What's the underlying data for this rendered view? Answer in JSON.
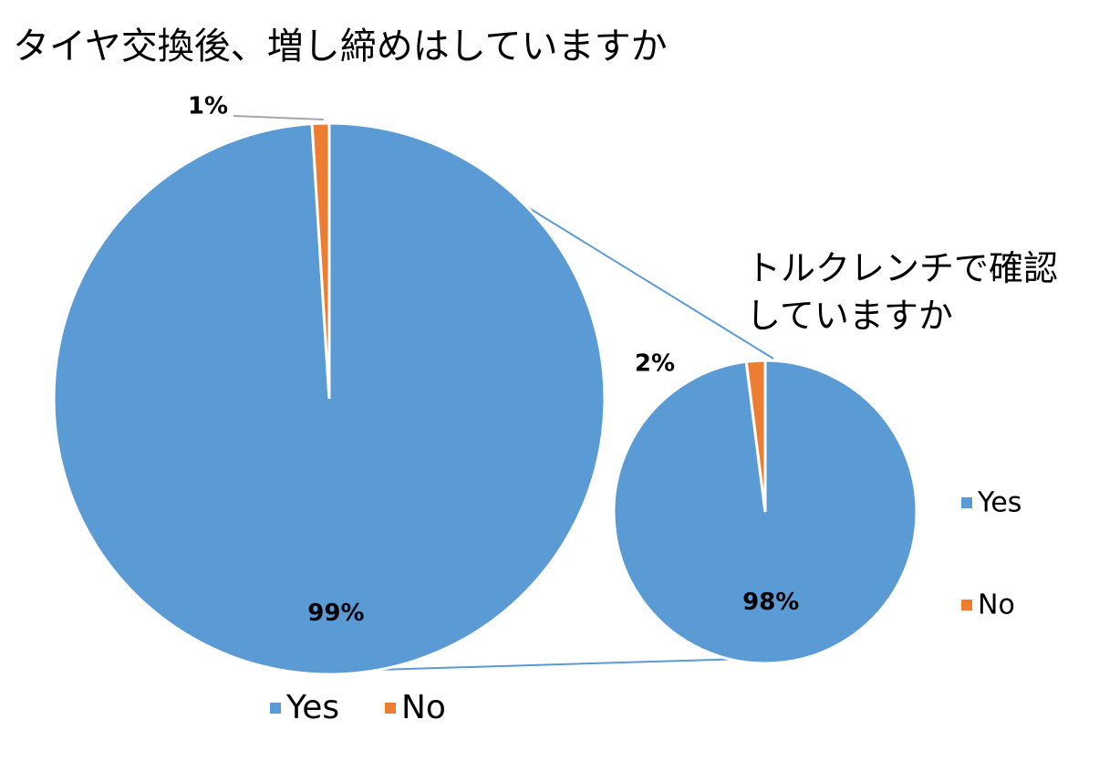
{
  "chart_data": [
    {
      "type": "pie",
      "title": "タイヤ交換後、増し締めはしていますか",
      "categories": [
        "Yes",
        "No"
      ],
      "values": [
        99,
        1
      ],
      "value_labels": [
        "99%",
        "1%"
      ],
      "colors": [
        "#5b9bd5",
        "#ed7d31"
      ],
      "legend": "bottom"
    },
    {
      "type": "pie",
      "title": "トルクレンチで確認していますか",
      "categories": [
        "Yes",
        "No"
      ],
      "values": [
        98,
        2
      ],
      "value_labels": [
        "98%",
        "2%"
      ],
      "colors": [
        "#5b9bd5",
        "#ed7d31"
      ],
      "legend": "right"
    }
  ]
}
